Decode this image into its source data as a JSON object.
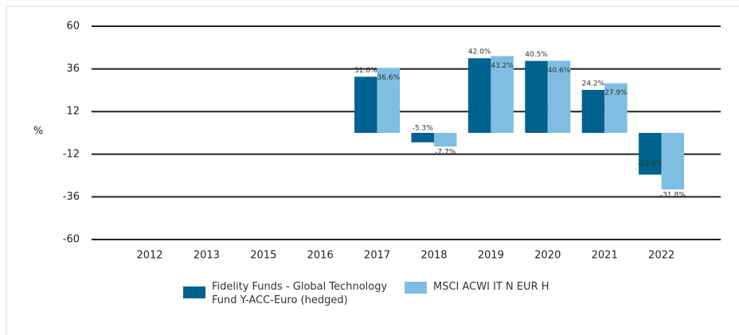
{
  "chart_data": {
    "type": "bar",
    "y_label": "%",
    "categories": [
      "2012",
      "2013",
      "2015",
      "2016",
      "2017",
      "2018",
      "2019",
      "2020",
      "2021",
      "2022"
    ],
    "series": [
      {
        "name": "Fidelity Funds - Global Technology Fund Y-ACC-Euro (hedged)",
        "color": "#00628f",
        "values": [
          null,
          null,
          null,
          null,
          31.6,
          -5.3,
          42.0,
          40.5,
          24.2,
          -23.5
        ],
        "value_labels": [
          null,
          null,
          null,
          null,
          "31.6%",
          "-5.3%",
          "42.0%",
          "40.5%",
          "24.2%",
          "-23.5%"
        ]
      },
      {
        "name": "MSCI ACWI IT N EUR H",
        "color": "#7fbde2",
        "values": [
          null,
          null,
          null,
          null,
          36.6,
          -7.7,
          43.2,
          40.6,
          27.9,
          -31.8
        ],
        "value_labels": [
          null,
          null,
          null,
          null,
          "36.6%",
          "-7.7%",
          "43.2%",
          "40.6%",
          "27.9%",
          "-31.8%"
        ]
      }
    ],
    "ylim": [
      -60,
      60
    ],
    "yticks": [
      -60,
      -36,
      -12,
      12,
      36,
      60
    ],
    "grid": true
  }
}
